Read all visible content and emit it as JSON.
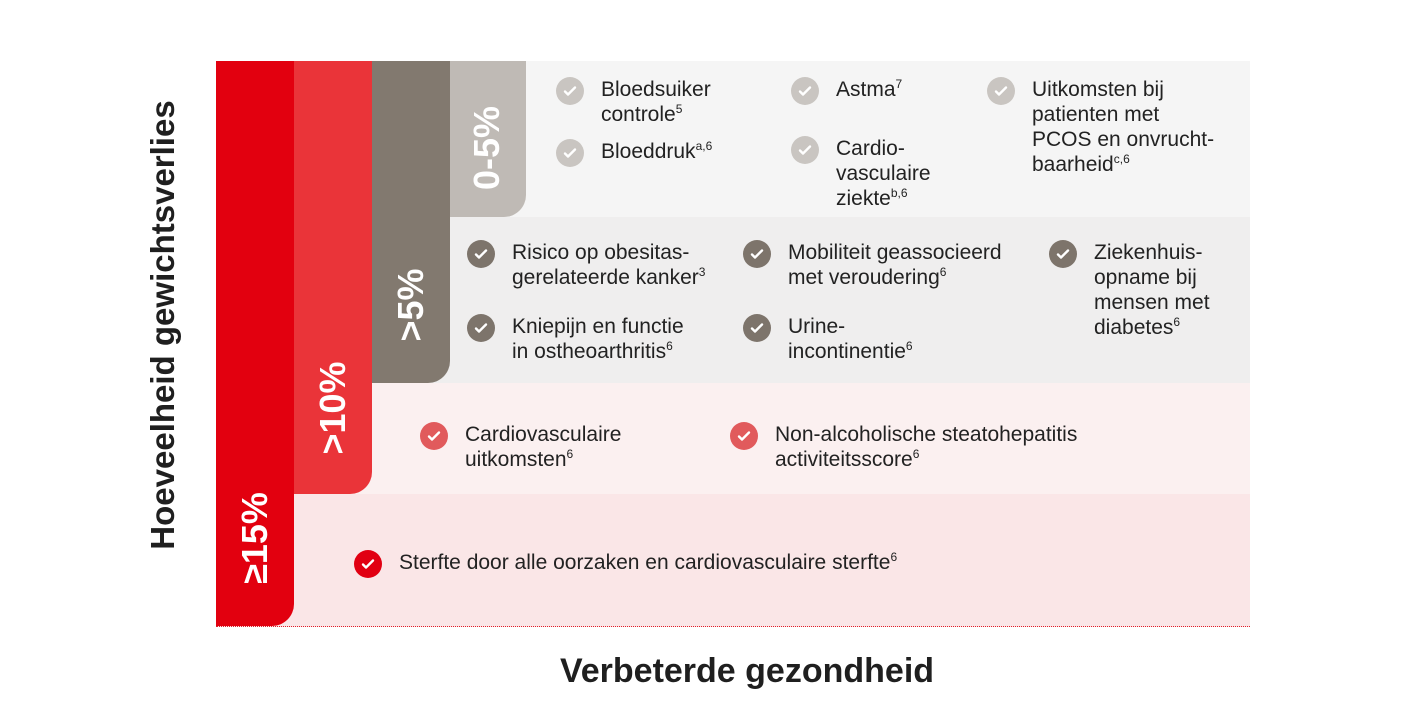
{
  "axes": {
    "y_label": "Hoeveelheid gewichtsverlies",
    "x_label": "Verbeterde gezondheid"
  },
  "tiers": [
    {
      "id": "t15",
      "label": "≥15%",
      "color": "#e2000f"
    },
    {
      "id": "t10",
      "label": ">10%",
      "color": "#ea3439"
    },
    {
      "id": "t5",
      "label": ">5%",
      "color": "#82796f"
    },
    {
      "id": "t0",
      "label": "0-5%",
      "color": "#bfbab5"
    }
  ],
  "items": {
    "t0": [
      {
        "text": "Bloedsuiker\ncontrole",
        "sup": "5"
      },
      {
        "text": "Bloeddruk",
        "sup": "a,6"
      },
      {
        "text": "Astma",
        "sup": "7"
      },
      {
        "text": "Cardio-\nvasculaire\nziekte",
        "sup": "b,6"
      },
      {
        "text": "Uitkomsten bij\npatienten met\nPCOS en onvrucht-\nbaarheid",
        "sup": "c,6"
      }
    ],
    "t5": [
      {
        "text": "Risico op obesitas-\ngerelateerde kanker",
        "sup": "3"
      },
      {
        "text": "Kniepijn en functie\nin ostheoarthritis",
        "sup": "6"
      },
      {
        "text": "Mobiliteit geassocieerd\nmet veroudering",
        "sup": "6"
      },
      {
        "text": "Urine-\nincontinentie",
        "sup": "6"
      },
      {
        "text": "Ziekenhuis-\nopname bij\nmensen met\ndiabetes",
        "sup": "6"
      }
    ],
    "t10": [
      {
        "text": "Cardiovasculaire\nuitkomsten",
        "sup": "6"
      },
      {
        "text": "Non-alcoholische steatohepatitis\nactiviteitsscore",
        "sup": "6"
      }
    ],
    "t15": [
      {
        "text": "Sterfte door alle oorzaken en cardiovasculaire sterfte",
        "sup": "6"
      }
    ]
  },
  "icon": "check-circle-icon"
}
